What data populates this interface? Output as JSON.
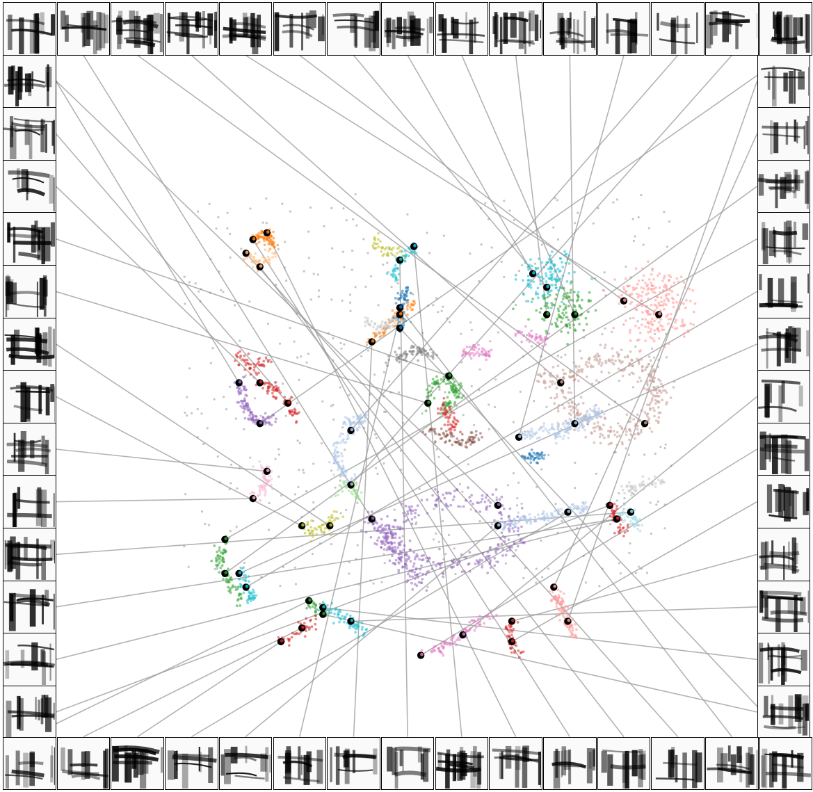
{
  "chart_data": {
    "type": "scatter",
    "title": "",
    "xlabel": "",
    "ylabel": "",
    "axes_visible": false,
    "grid": false,
    "legend": "none",
    "description_free": true,
    "thumbnail_style": "grayscale spectrogram insets in a border grid around the embedding",
    "palette": [
      "#1f77b4",
      "#ff7f0e",
      "#2ca02c",
      "#d62728",
      "#9467bd",
      "#8c564b",
      "#e377c2",
      "#7f7f7f",
      "#bcbd22",
      "#17becf",
      "#aec7e8",
      "#ffbb78",
      "#98df8a",
      "#ff9896",
      "#c5b0d5",
      "#c49c94",
      "#f7b6d2",
      "#c7c7c7",
      "#dbdb8d",
      "#9edae5"
    ],
    "xlim": [
      0,
      100
    ],
    "ylim": [
      0,
      100
    ],
    "clusters": [
      {
        "color": 4,
        "shape": "loop",
        "points": [
          [
            45,
            32
          ],
          [
            48,
            28
          ],
          [
            55,
            25
          ],
          [
            62,
            26
          ],
          [
            66,
            30
          ],
          [
            63,
            34
          ],
          [
            56,
            35
          ],
          [
            50,
            33
          ],
          [
            47,
            29
          ],
          [
            52,
            23
          ]
        ],
        "count": 420
      },
      {
        "color": 15,
        "shape": "loop",
        "points": [
          [
            72,
            52
          ],
          [
            78,
            56
          ],
          [
            84,
            54
          ],
          [
            86,
            50
          ],
          [
            84,
            46
          ],
          [
            80,
            44
          ],
          [
            76,
            46
          ],
          [
            72,
            50
          ],
          [
            70,
            53
          ]
        ],
        "count": 380
      },
      {
        "color": 13,
        "shape": "blob",
        "points": [
          [
            81,
            64
          ],
          [
            85,
            67
          ],
          [
            88,
            65
          ],
          [
            86,
            62
          ],
          [
            83,
            61
          ],
          [
            90,
            61
          ]
        ],
        "count": 220
      },
      {
        "color": 9,
        "shape": "blob",
        "points": [
          [
            68,
            68
          ],
          [
            70,
            66
          ],
          [
            72,
            69
          ]
        ],
        "count": 120
      },
      {
        "color": 2,
        "shape": "blob",
        "points": [
          [
            70,
            62
          ],
          [
            72,
            64
          ],
          [
            74,
            62
          ],
          [
            72,
            60
          ]
        ],
        "count": 110
      },
      {
        "color": 10,
        "shape": "curve",
        "points": [
          [
            66,
            44
          ],
          [
            70,
            45
          ],
          [
            74,
            46
          ],
          [
            78,
            48
          ],
          [
            71,
            44
          ]
        ],
        "count": 160
      },
      {
        "color": 10,
        "shape": "curve",
        "points": [
          [
            42,
            37
          ],
          [
            40,
            40
          ],
          [
            40,
            43
          ],
          [
            42,
            45
          ],
          [
            44,
            47
          ],
          [
            41,
            46
          ]
        ],
        "count": 140
      },
      {
        "color": 4,
        "shape": "curve",
        "points": [
          [
            26,
            52
          ],
          [
            27,
            48
          ],
          [
            29,
            46
          ],
          [
            31,
            47
          ]
        ],
        "count": 110
      },
      {
        "color": 3,
        "shape": "curve",
        "points": [
          [
            29,
            52
          ],
          [
            31,
            51
          ],
          [
            33,
            49
          ],
          [
            34,
            47
          ]
        ],
        "count": 70
      },
      {
        "color": 2,
        "shape": "curve",
        "points": [
          [
            53,
            49
          ],
          [
            54,
            52
          ],
          [
            56,
            53
          ],
          [
            57,
            50
          ],
          [
            55,
            48
          ]
        ],
        "count": 110
      },
      {
        "color": 8,
        "shape": "curve",
        "points": [
          [
            35,
            31
          ],
          [
            37,
            30
          ],
          [
            39,
            31
          ],
          [
            40,
            33
          ]
        ],
        "count": 50
      },
      {
        "color": 16,
        "shape": "curve",
        "points": [
          [
            28,
            35
          ],
          [
            30,
            37
          ],
          [
            30,
            39
          ],
          [
            29,
            40
          ]
        ],
        "count": 60
      },
      {
        "color": 19,
        "shape": "curve",
        "points": [
          [
            80,
            32
          ],
          [
            82,
            33
          ],
          [
            83,
            31
          ]
        ],
        "count": 50
      },
      {
        "color": 3,
        "shape": "curve",
        "points": [
          [
            79,
            34
          ],
          [
            80,
            32
          ],
          [
            81,
            30
          ]
        ],
        "count": 40
      },
      {
        "color": 13,
        "shape": "curve",
        "points": [
          [
            71,
            22
          ],
          [
            72,
            19
          ],
          [
            73,
            17
          ],
          [
            74,
            15
          ]
        ],
        "count": 90
      },
      {
        "color": 2,
        "shape": "curve",
        "points": [
          [
            24,
            29
          ],
          [
            23,
            26
          ],
          [
            24,
            24
          ],
          [
            25,
            22
          ],
          [
            26,
            20
          ]
        ],
        "count": 80
      },
      {
        "color": 9,
        "shape": "curve",
        "points": [
          [
            26,
            24
          ],
          [
            27,
            22
          ],
          [
            28,
            20
          ]
        ],
        "count": 50
      },
      {
        "color": 6,
        "shape": "curve",
        "points": [
          [
            52,
            12
          ],
          [
            55,
            13
          ],
          [
            58,
            15
          ],
          [
            60,
            17
          ],
          [
            62,
            18
          ]
        ],
        "count": 80
      },
      {
        "color": 3,
        "shape": "curve",
        "points": [
          [
            65,
            17
          ],
          [
            65,
            14
          ],
          [
            66,
            12
          ]
        ],
        "count": 40
      },
      {
        "color": 9,
        "shape": "curve",
        "points": [
          [
            38,
            19
          ],
          [
            40,
            18
          ],
          [
            42,
            17
          ],
          [
            44,
            15
          ]
        ],
        "count": 60
      },
      {
        "color": 2,
        "shape": "curve",
        "points": [
          [
            36,
            20
          ],
          [
            38,
            18
          ]
        ],
        "count": 30
      },
      {
        "color": 3,
        "shape": "curve",
        "points": [
          [
            32,
            14
          ],
          [
            34,
            15
          ],
          [
            35,
            16
          ],
          [
            37,
            17
          ]
        ],
        "count": 40
      },
      {
        "color": 10,
        "shape": "curve",
        "points": [
          [
            63,
            31
          ],
          [
            68,
            32
          ],
          [
            73,
            33
          ],
          [
            76,
            34
          ]
        ],
        "count": 140
      },
      {
        "color": 1,
        "shape": "curve",
        "points": [
          [
            45,
            58
          ],
          [
            47,
            60
          ],
          [
            49,
            62
          ],
          [
            51,
            64
          ]
        ],
        "count": 70
      },
      {
        "color": 9,
        "shape": "curve",
        "points": [
          [
            51,
            72
          ],
          [
            49,
            70
          ],
          [
            48,
            67
          ]
        ],
        "count": 60
      },
      {
        "color": 1,
        "shape": "curve",
        "points": [
          [
            28,
            73
          ],
          [
            30,
            74
          ],
          [
            31,
            72
          ]
        ],
        "count": 70
      },
      {
        "color": 11,
        "shape": "curve",
        "points": [
          [
            27,
            71
          ],
          [
            29,
            69
          ],
          [
            31,
            71
          ]
        ],
        "count": 60
      },
      {
        "color": 0,
        "shape": "curve",
        "points": [
          [
            49,
            60
          ],
          [
            49,
            63
          ],
          [
            50,
            66
          ]
        ],
        "count": 60
      },
      {
        "color": 8,
        "shape": "curve",
        "points": [
          [
            45,
            73
          ],
          [
            47,
            71
          ],
          [
            49,
            71
          ]
        ],
        "count": 40
      },
      {
        "color": 6,
        "shape": "curve",
        "points": [
          [
            58,
            56
          ],
          [
            60,
            57
          ],
          [
            62,
            56
          ]
        ],
        "count": 50
      },
      {
        "color": 0,
        "shape": "curve",
        "points": [
          [
            67,
            41
          ],
          [
            69,
            41
          ]
        ],
        "count": 40
      },
      {
        "color": 7,
        "shape": "curve",
        "points": [
          [
            48,
            55
          ],
          [
            51,
            57
          ],
          [
            54,
            56
          ]
        ],
        "count": 70
      },
      {
        "color": 12,
        "shape": "curve",
        "points": [
          [
            40,
            36
          ],
          [
            42,
            37
          ],
          [
            43,
            35
          ]
        ],
        "count": 40
      },
      {
        "color": 17,
        "shape": "curve",
        "points": [
          [
            81,
            36
          ],
          [
            84,
            37
          ],
          [
            87,
            38
          ]
        ],
        "count": 50
      },
      {
        "color": 5,
        "shape": "curve",
        "points": [
          [
            53,
            45
          ],
          [
            56,
            44
          ],
          [
            58,
            43
          ],
          [
            60,
            44
          ]
        ],
        "count": 80
      },
      {
        "color": 3,
        "shape": "curve",
        "points": [
          [
            55,
            49
          ],
          [
            56,
            47
          ],
          [
            57,
            45
          ]
        ],
        "count": 50
      },
      {
        "color": 17,
        "shape": "curve",
        "points": [
          [
            44,
            61
          ],
          [
            46,
            60
          ],
          [
            48,
            61
          ]
        ],
        "count": 50
      },
      {
        "color": 6,
        "shape": "curve",
        "points": [
          [
            66,
            59
          ],
          [
            68,
            59
          ],
          [
            70,
            58
          ]
        ],
        "count": 40
      },
      {
        "color": 3,
        "shape": "curve",
        "points": [
          [
            26,
            56
          ],
          [
            28,
            54
          ],
          [
            30,
            55
          ]
        ],
        "count": 50
      }
    ],
    "scatter_noise": {
      "color": 7,
      "count": 500,
      "xlim": [
        18,
        88
      ],
      "ylim": [
        22,
        80
      ]
    },
    "highlighted_points": 64
  }
}
